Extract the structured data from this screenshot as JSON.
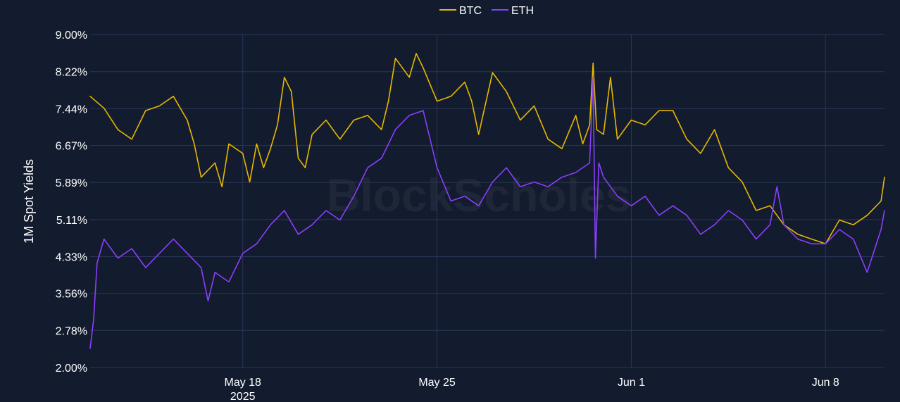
{
  "watermark": "BlockScholes",
  "chart_data": {
    "type": "line",
    "title": "",
    "ylabel": "1M Spot Yields",
    "xlabel": "",
    "x_start": "2025-05-12T12:00",
    "x_end": "2025-06-10T03:00",
    "x_range": [
      "2025-05-12T12:00",
      "2025-06-10T03:00"
    ],
    "ylim": [
      2.0,
      9.0
    ],
    "y_unit": "%",
    "y_ticks": [
      "2.00%",
      "2.78%",
      "3.56%",
      "4.33%",
      "5.11%",
      "5.89%",
      "6.67%",
      "7.44%",
      "8.22%",
      "9.00%"
    ],
    "y_tick_values": [
      2.0,
      2.78,
      3.56,
      4.33,
      5.11,
      5.89,
      6.67,
      7.44,
      8.22,
      9.0
    ],
    "x_ticks": [
      {
        "date": "2025-05-18",
        "label": "May 18",
        "sublabel": "2025"
      },
      {
        "date": "2025-05-25",
        "label": "May 25",
        "sublabel": ""
      },
      {
        "date": "2025-06-01",
        "label": "Jun 1",
        "sublabel": ""
      },
      {
        "date": "2025-06-08",
        "label": "Jun 8",
        "sublabel": ""
      }
    ],
    "grid": true,
    "legend_position": "top-center",
    "series": [
      {
        "name": "BTC",
        "color": "#e6b800",
        "points": [
          [
            "2025-05-12T12:00",
            7.7
          ],
          [
            "2025-05-13T00:00",
            7.45
          ],
          [
            "2025-05-13T12:00",
            7.0
          ],
          [
            "2025-05-14T00:00",
            6.8
          ],
          [
            "2025-05-14T12:00",
            7.4
          ],
          [
            "2025-05-15T00:00",
            7.5
          ],
          [
            "2025-05-15T12:00",
            7.7
          ],
          [
            "2025-05-16T00:00",
            7.2
          ],
          [
            "2025-05-16T06:00",
            6.7
          ],
          [
            "2025-05-16T12:00",
            6.0
          ],
          [
            "2025-05-17T00:00",
            6.3
          ],
          [
            "2025-05-17T06:00",
            5.8
          ],
          [
            "2025-05-17T12:00",
            6.7
          ],
          [
            "2025-05-18T00:00",
            6.5
          ],
          [
            "2025-05-18T06:00",
            5.9
          ],
          [
            "2025-05-18T12:00",
            6.7
          ],
          [
            "2025-05-18T18:00",
            6.2
          ],
          [
            "2025-05-19T00:00",
            6.6
          ],
          [
            "2025-05-19T06:00",
            7.1
          ],
          [
            "2025-05-19T12:00",
            8.1
          ],
          [
            "2025-05-19T18:00",
            7.8
          ],
          [
            "2025-05-20T00:00",
            6.4
          ],
          [
            "2025-05-20T06:00",
            6.2
          ],
          [
            "2025-05-20T12:00",
            6.9
          ],
          [
            "2025-05-21T00:00",
            7.2
          ],
          [
            "2025-05-21T12:00",
            6.8
          ],
          [
            "2025-05-22T00:00",
            7.2
          ],
          [
            "2025-05-22T12:00",
            7.3
          ],
          [
            "2025-05-23T00:00",
            7.0
          ],
          [
            "2025-05-23T06:00",
            7.6
          ],
          [
            "2025-05-23T12:00",
            8.5
          ],
          [
            "2025-05-24T00:00",
            8.1
          ],
          [
            "2025-05-24T06:00",
            8.6
          ],
          [
            "2025-05-24T12:00",
            8.3
          ],
          [
            "2025-05-25T00:00",
            7.6
          ],
          [
            "2025-05-25T12:00",
            7.7
          ],
          [
            "2025-05-26T00:00",
            8.0
          ],
          [
            "2025-05-26T06:00",
            7.6
          ],
          [
            "2025-05-26T12:00",
            6.9
          ],
          [
            "2025-05-27T00:00",
            8.2
          ],
          [
            "2025-05-27T12:00",
            7.8
          ],
          [
            "2025-05-28T00:00",
            7.2
          ],
          [
            "2025-05-28T12:00",
            7.5
          ],
          [
            "2025-05-29T00:00",
            6.8
          ],
          [
            "2025-05-29T12:00",
            6.6
          ],
          [
            "2025-05-30T00:00",
            7.3
          ],
          [
            "2025-05-30T06:00",
            6.7
          ],
          [
            "2025-05-30T12:00",
            7.1
          ],
          [
            "2025-05-30T15:00",
            8.4
          ],
          [
            "2025-05-30T18:00",
            7.0
          ],
          [
            "2025-05-31T00:00",
            6.9
          ],
          [
            "2025-05-31T06:00",
            8.1
          ],
          [
            "2025-05-31T12:00",
            6.8
          ],
          [
            "2025-06-01T00:00",
            7.2
          ],
          [
            "2025-06-01T12:00",
            7.1
          ],
          [
            "2025-06-02T00:00",
            7.4
          ],
          [
            "2025-06-02T12:00",
            7.4
          ],
          [
            "2025-06-03T00:00",
            6.8
          ],
          [
            "2025-06-03T12:00",
            6.5
          ],
          [
            "2025-06-04T00:00",
            7.0
          ],
          [
            "2025-06-04T12:00",
            6.2
          ],
          [
            "2025-06-05T00:00",
            5.9
          ],
          [
            "2025-06-05T12:00",
            5.3
          ],
          [
            "2025-06-06T00:00",
            5.4
          ],
          [
            "2025-06-06T12:00",
            5.0
          ],
          [
            "2025-06-07T00:00",
            4.8
          ],
          [
            "2025-06-07T12:00",
            4.7
          ],
          [
            "2025-06-08T00:00",
            4.6
          ],
          [
            "2025-06-08T12:00",
            5.1
          ],
          [
            "2025-06-09T00:00",
            5.0
          ],
          [
            "2025-06-09T12:00",
            5.2
          ],
          [
            "2025-06-10T00:00",
            5.5
          ],
          [
            "2025-06-10T03:00",
            6.0
          ]
        ]
      },
      {
        "name": "ETH",
        "color": "#8a3ffc",
        "points": [
          [
            "2025-05-12T12:00",
            2.4
          ],
          [
            "2025-05-12T15:00",
            3.0
          ],
          [
            "2025-05-12T18:00",
            4.2
          ],
          [
            "2025-05-13T00:00",
            4.7
          ],
          [
            "2025-05-13T12:00",
            4.3
          ],
          [
            "2025-05-14T00:00",
            4.5
          ],
          [
            "2025-05-14T12:00",
            4.1
          ],
          [
            "2025-05-15T00:00",
            4.4
          ],
          [
            "2025-05-15T12:00",
            4.7
          ],
          [
            "2025-05-16T00:00",
            4.4
          ],
          [
            "2025-05-16T12:00",
            4.1
          ],
          [
            "2025-05-16T18:00",
            3.4
          ],
          [
            "2025-05-17T00:00",
            4.0
          ],
          [
            "2025-05-17T12:00",
            3.8
          ],
          [
            "2025-05-18T00:00",
            4.4
          ],
          [
            "2025-05-18T12:00",
            4.6
          ],
          [
            "2025-05-19T00:00",
            5.0
          ],
          [
            "2025-05-19T12:00",
            5.3
          ],
          [
            "2025-05-20T00:00",
            4.8
          ],
          [
            "2025-05-20T12:00",
            5.0
          ],
          [
            "2025-05-21T00:00",
            5.3
          ],
          [
            "2025-05-21T12:00",
            5.1
          ],
          [
            "2025-05-22T00:00",
            5.6
          ],
          [
            "2025-05-22T12:00",
            6.2
          ],
          [
            "2025-05-23T00:00",
            6.4
          ],
          [
            "2025-05-23T12:00",
            7.0
          ],
          [
            "2025-05-24T00:00",
            7.3
          ],
          [
            "2025-05-24T12:00",
            7.4
          ],
          [
            "2025-05-25T00:00",
            6.2
          ],
          [
            "2025-05-25T12:00",
            5.5
          ],
          [
            "2025-05-26T00:00",
            5.6
          ],
          [
            "2025-05-26T12:00",
            5.4
          ],
          [
            "2025-05-27T00:00",
            5.9
          ],
          [
            "2025-05-27T12:00",
            6.2
          ],
          [
            "2025-05-28T00:00",
            5.8
          ],
          [
            "2025-05-28T12:00",
            5.9
          ],
          [
            "2025-05-29T00:00",
            5.8
          ],
          [
            "2025-05-29T12:00",
            6.0
          ],
          [
            "2025-05-30T00:00",
            6.1
          ],
          [
            "2025-05-30T12:00",
            6.3
          ],
          [
            "2025-05-30T15:00",
            8.1
          ],
          [
            "2025-05-30T17:00",
            4.3
          ],
          [
            "2025-05-30T20:00",
            6.3
          ],
          [
            "2025-05-31T00:00",
            6.0
          ],
          [
            "2025-05-31T12:00",
            5.6
          ],
          [
            "2025-06-01T00:00",
            5.4
          ],
          [
            "2025-06-01T12:00",
            5.6
          ],
          [
            "2025-06-02T00:00",
            5.2
          ],
          [
            "2025-06-02T12:00",
            5.4
          ],
          [
            "2025-06-03T00:00",
            5.2
          ],
          [
            "2025-06-03T12:00",
            4.8
          ],
          [
            "2025-06-04T00:00",
            5.0
          ],
          [
            "2025-06-04T12:00",
            5.3
          ],
          [
            "2025-06-05T00:00",
            5.1
          ],
          [
            "2025-06-05T12:00",
            4.7
          ],
          [
            "2025-06-06T00:00",
            5.0
          ],
          [
            "2025-06-06T06:00",
            5.8
          ],
          [
            "2025-06-06T12:00",
            5.0
          ],
          [
            "2025-06-07T00:00",
            4.7
          ],
          [
            "2025-06-07T12:00",
            4.6
          ],
          [
            "2025-06-08T00:00",
            4.6
          ],
          [
            "2025-06-08T12:00",
            4.9
          ],
          [
            "2025-06-09T00:00",
            4.7
          ],
          [
            "2025-06-09T12:00",
            4.0
          ],
          [
            "2025-06-10T00:00",
            4.9
          ],
          [
            "2025-06-10T03:00",
            5.3
          ]
        ]
      }
    ]
  }
}
